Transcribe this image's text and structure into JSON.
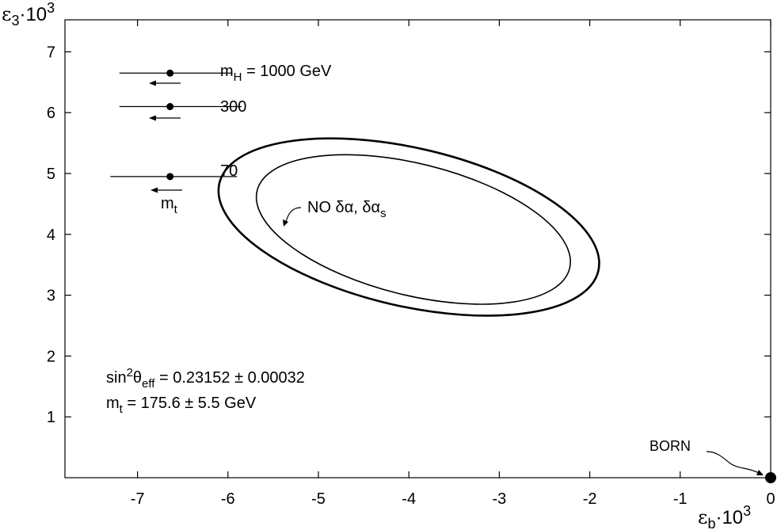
{
  "chart_data": {
    "type": "scatter",
    "title": "",
    "xlabel": {
      "base": "ε",
      "sub": "b",
      "mult": "·10",
      "sup": "3"
    },
    "ylabel": {
      "base": "ε",
      "sub": "3",
      "mult": "·10",
      "sup": "3"
    },
    "xlim": [
      -7.8,
      0.1
    ],
    "ylim": [
      0,
      7.6
    ],
    "xticks": [
      -7,
      -6,
      -5,
      -4,
      -3,
      -2,
      -1,
      0
    ],
    "xtick_labels": [
      "-7",
      "-6",
      "-5",
      "-4",
      "-3",
      "-2",
      "-1",
      "0"
    ],
    "yticks": [
      1,
      2,
      3,
      4,
      5,
      6,
      7
    ],
    "ytick_labels": [
      "1",
      "2",
      "3",
      "4",
      "5",
      "6",
      "7"
    ],
    "grid": false,
    "series": [
      {
        "name": "contour_outer",
        "kind": "ellipse",
        "center": [
          -4.0,
          4.12
        ],
        "semi_major": 2.15,
        "semi_minor": 1.3,
        "angle_deg": -13
      },
      {
        "name": "contour_inner",
        "kind": "ellipse",
        "center": [
          -3.95,
          4.08
        ],
        "semi_major": 1.78,
        "semi_minor": 1.08,
        "angle_deg": -14
      },
      {
        "name": "sm_points",
        "kind": "points_with_xerr",
        "points": [
          {
            "label": "m_H = 1000 GeV",
            "x": -6.64,
            "y": 6.65,
            "xmin": -7.2,
            "xmax": -5.95
          },
          {
            "label": "300",
            "x": -6.64,
            "y": 6.1,
            "xmin": -7.2,
            "xmax": -5.85
          },
          {
            "label": "70",
            "x": -6.64,
            "y": 4.95,
            "xmin": -7.3,
            "xmax": -5.9
          }
        ]
      },
      {
        "name": "born",
        "kind": "point",
        "x": 0,
        "y": 0
      }
    ],
    "annotations": {
      "mH_label": {
        "base": "m",
        "sub": "H",
        "rest": " = 1000 GeV"
      },
      "mH_300": "300",
      "mH_70": "70",
      "mt_arrow": {
        "base": "m",
        "sub": "t"
      },
      "no_dalpha": {
        "main": "NO δα, δα",
        "sub": "s"
      },
      "sin2_line": {
        "a": "sin",
        "sup": "2",
        "b": "θ",
        "sub": "eff",
        "rest": " = 0.23152 ± 0.00032"
      },
      "mt_line": {
        "base": "m",
        "sub": "t",
        "rest": " = 175.6 ± 5.5 GeV"
      },
      "born": "BORN"
    }
  }
}
